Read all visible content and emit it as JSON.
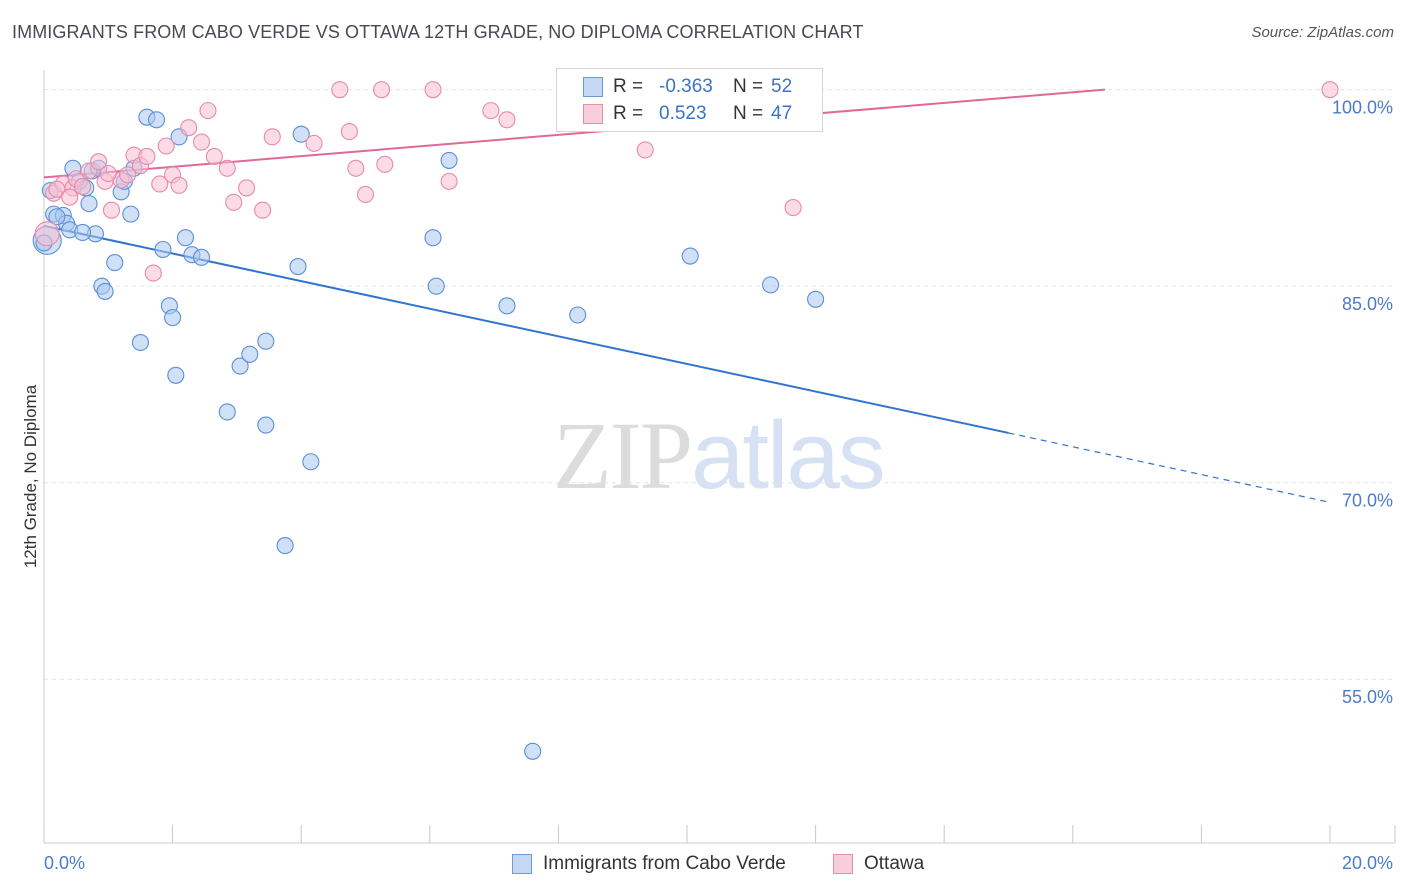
{
  "title": "IMMIGRANTS FROM CABO VERDE VS OTTAWA 12TH GRADE, NO DIPLOMA CORRELATION CHART",
  "source": "Source: ZipAtlas.com",
  "watermark": {
    "zip": "ZIP",
    "atlas": "atlas"
  },
  "legend": {
    "rows": [
      {
        "r_label": "R =",
        "r_value": "-0.363",
        "n_label": "N =",
        "n_value": "52"
      },
      {
        "r_label": "R =",
        "r_value": "0.523",
        "n_label": "N =",
        "n_value": "47"
      }
    ]
  },
  "bottom_legend": [
    "Immigrants from Cabo Verde",
    "Ottawa"
  ],
  "colors": {
    "blue_fill": "#a9c8f0",
    "blue_stroke": "#5b8fd6",
    "blue_line": "#2f74d0",
    "pink_fill": "#f7bfd1",
    "pink_stroke": "#e889aa",
    "pink_line": "#e0689a",
    "grid": "#e4e4e4",
    "tick_label": "#4a7cc9"
  },
  "chart_data": {
    "type": "scatter",
    "title": "IMMIGRANTS FROM CABO VERDE VS OTTAWA 12TH GRADE, NO DIPLOMA CORRELATION CHART",
    "xlabel": "",
    "ylabel": "12th Grade, No Diploma",
    "xlim": [
      0,
      20
    ],
    "ylim": [
      42.5,
      101.5
    ],
    "x_tick_labels": [
      "0.0%",
      "20.0%"
    ],
    "y_ticks": [
      55,
      70,
      85,
      100
    ],
    "y_tick_labels": [
      "55.0%",
      "70.0%",
      "85.0%",
      "100.0%"
    ],
    "grid": true,
    "legend_position": "top-center",
    "series": [
      {
        "name": "Immigrants from Cabo Verde",
        "color": "#a9c8f0",
        "points": [
          [
            0.05,
            88.5,
            14
          ],
          [
            0.1,
            92.3,
            8
          ],
          [
            0.15,
            90.5,
            8
          ],
          [
            0.3,
            90.4,
            8
          ],
          [
            0.35,
            89.8,
            8
          ],
          [
            0.4,
            89.3,
            8
          ],
          [
            0.45,
            94.0,
            8
          ],
          [
            0.55,
            93.0,
            8
          ],
          [
            0.65,
            92.5,
            8
          ],
          [
            0.7,
            91.3,
            8
          ],
          [
            0.75,
            93.8,
            8
          ],
          [
            0.8,
            89.0,
            8
          ],
          [
            0.85,
            94.0,
            8
          ],
          [
            0.9,
            85.0,
            8
          ],
          [
            0.95,
            84.6,
            8
          ],
          [
            1.1,
            86.8,
            8
          ],
          [
            1.2,
            92.2,
            8
          ],
          [
            1.25,
            93.0,
            8
          ],
          [
            1.35,
            90.5,
            8
          ],
          [
            1.4,
            94.0,
            8
          ],
          [
            1.5,
            80.7,
            8
          ],
          [
            1.6,
            97.9,
            8
          ],
          [
            1.75,
            97.7,
            8
          ],
          [
            1.85,
            87.8,
            8
          ],
          [
            1.95,
            83.5,
            8
          ],
          [
            2.0,
            82.6,
            8
          ],
          [
            2.05,
            78.2,
            8
          ],
          [
            2.1,
            96.4,
            8
          ],
          [
            2.2,
            88.7,
            8
          ],
          [
            2.3,
            87.4,
            8
          ],
          [
            2.45,
            87.2,
            8
          ],
          [
            2.85,
            75.4,
            8
          ],
          [
            3.05,
            78.9,
            8
          ],
          [
            3.2,
            79.8,
            8
          ],
          [
            3.45,
            80.8,
            8
          ],
          [
            3.45,
            74.4,
            8
          ],
          [
            3.75,
            65.2,
            8
          ],
          [
            3.95,
            86.5,
            8
          ],
          [
            4.0,
            96.6,
            8
          ],
          [
            4.15,
            71.6,
            8
          ],
          [
            6.05,
            88.7,
            8
          ],
          [
            6.1,
            85.0,
            8
          ],
          [
            6.3,
            94.6,
            8
          ],
          [
            7.2,
            83.5,
            8
          ],
          [
            8.3,
            82.8,
            8
          ],
          [
            10.05,
            87.3,
            8
          ],
          [
            11.3,
            85.1,
            8
          ],
          [
            12.0,
            84.0,
            8
          ],
          [
            0.2,
            90.3,
            8
          ],
          [
            0.6,
            89.1,
            8
          ],
          [
            7.6,
            49.5,
            8
          ],
          [
            0.0,
            88.3,
            8
          ]
        ],
        "trend": {
          "x0": 0,
          "y0": 89.6,
          "x1": 15.0,
          "y1": 73.8,
          "dashed_to_x": 20.0,
          "dashed_to_y": 68.5
        }
      },
      {
        "name": "Ottawa",
        "color": "#f7bfd1",
        "points": [
          [
            0.05,
            89.0,
            12
          ],
          [
            0.15,
            92.1,
            8
          ],
          [
            0.3,
            92.8,
            8
          ],
          [
            0.45,
            92.5,
            8
          ],
          [
            0.5,
            93.2,
            8
          ],
          [
            0.6,
            92.6,
            8
          ],
          [
            0.7,
            93.8,
            8
          ],
          [
            0.85,
            94.5,
            8
          ],
          [
            0.95,
            93.0,
            8
          ],
          [
            1.05,
            90.8,
            8
          ],
          [
            1.2,
            93.1,
            8
          ],
          [
            1.3,
            93.5,
            8
          ],
          [
            1.4,
            95.0,
            8
          ],
          [
            1.5,
            94.2,
            8
          ],
          [
            1.6,
            94.9,
            8
          ],
          [
            1.7,
            86.0,
            8
          ],
          [
            1.8,
            92.8,
            8
          ],
          [
            1.9,
            95.7,
            8
          ],
          [
            2.0,
            93.5,
            8
          ],
          [
            2.1,
            92.7,
            8
          ],
          [
            2.25,
            97.1,
            8
          ],
          [
            2.45,
            96.0,
            8
          ],
          [
            2.55,
            98.4,
            8
          ],
          [
            2.65,
            94.9,
            8
          ],
          [
            2.85,
            94.0,
            8
          ],
          [
            2.95,
            91.4,
            8
          ],
          [
            3.15,
            92.5,
            8
          ],
          [
            3.4,
            90.8,
            8
          ],
          [
            3.55,
            96.4,
            8
          ],
          [
            4.2,
            95.9,
            8
          ],
          [
            4.6,
            100.0,
            8
          ],
          [
            4.75,
            96.8,
            8
          ],
          [
            4.85,
            94.0,
            8
          ],
          [
            5.0,
            92.0,
            8
          ],
          [
            5.25,
            100.0,
            8
          ],
          [
            5.3,
            94.3,
            8
          ],
          [
            6.05,
            100.0,
            8
          ],
          [
            6.3,
            93.0,
            8
          ],
          [
            6.95,
            98.4,
            8
          ],
          [
            7.2,
            97.7,
            8
          ],
          [
            9.35,
            95.4,
            8
          ],
          [
            11.65,
            91.0,
            8
          ],
          [
            20.0,
            100.0,
            8
          ],
          [
            8.1,
            100.0,
            8
          ],
          [
            0.2,
            92.4,
            8
          ],
          [
            0.4,
            91.8,
            8
          ],
          [
            1.0,
            93.6,
            8
          ]
        ],
        "trend": {
          "x0": 0,
          "y0": 93.3,
          "x1": 16.5,
          "y1": 100.0
        }
      }
    ]
  }
}
